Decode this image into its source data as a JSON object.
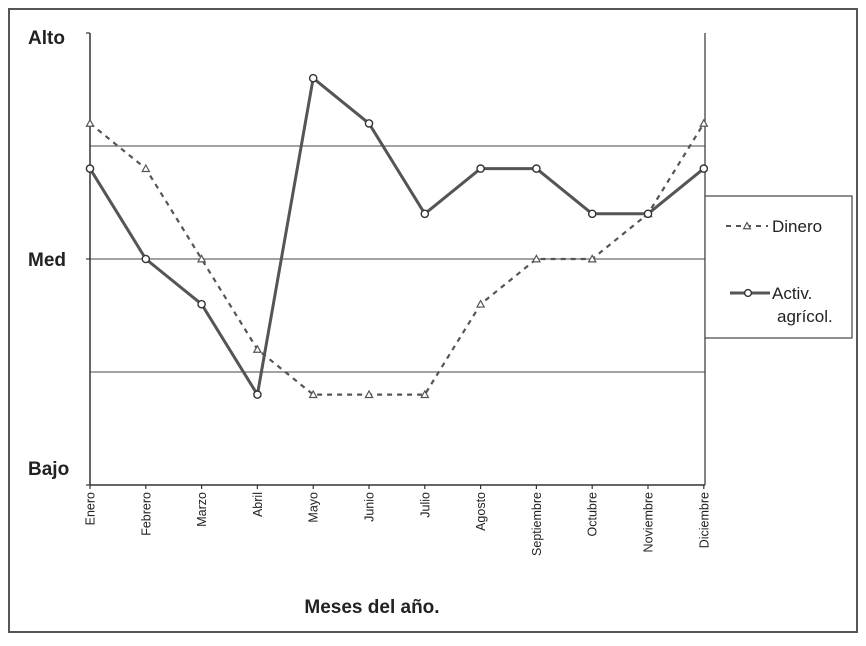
{
  "chart_data": {
    "type": "line",
    "title": "",
    "xlabel": "Meses del año.",
    "ylabel": "",
    "y_levels": [
      "Bajo",
      "Med",
      "Alto"
    ],
    "y_ticks": [
      {
        "value": 0,
        "label": "Bajo"
      },
      {
        "value": 2,
        "label": "Med"
      },
      {
        "value": 4,
        "label": "Alto"
      }
    ],
    "ylim": [
      0,
      4
    ],
    "gridlines_y": [
      1,
      2,
      3
    ],
    "grid": true,
    "legend_position": "right",
    "categories": [
      "Enero",
      "Febrero",
      "Marzo",
      "Abril",
      "Mayo",
      "Junio",
      "Julio",
      "Agosto",
      "Septiembre",
      "Octubre",
      "Noviembre",
      "Diciembre"
    ],
    "series": [
      {
        "name": "Dinero",
        "line_style": "dashed",
        "marker": "triangle",
        "color": "#555555",
        "values": [
          3.2,
          2.8,
          2.0,
          1.2,
          0.8,
          0.8,
          0.8,
          1.6,
          2.0,
          2.0,
          2.4,
          3.2
        ]
      },
      {
        "name": "Activ. agrícol.",
        "legend_lines": [
          "Activ.",
          "agrícol."
        ],
        "line_style": "solid",
        "marker": "circle",
        "color": "#555555",
        "values": [
          2.8,
          2.0,
          1.6,
          0.8,
          3.6,
          3.2,
          2.4,
          2.8,
          2.8,
          2.4,
          2.4,
          2.8
        ]
      }
    ]
  }
}
